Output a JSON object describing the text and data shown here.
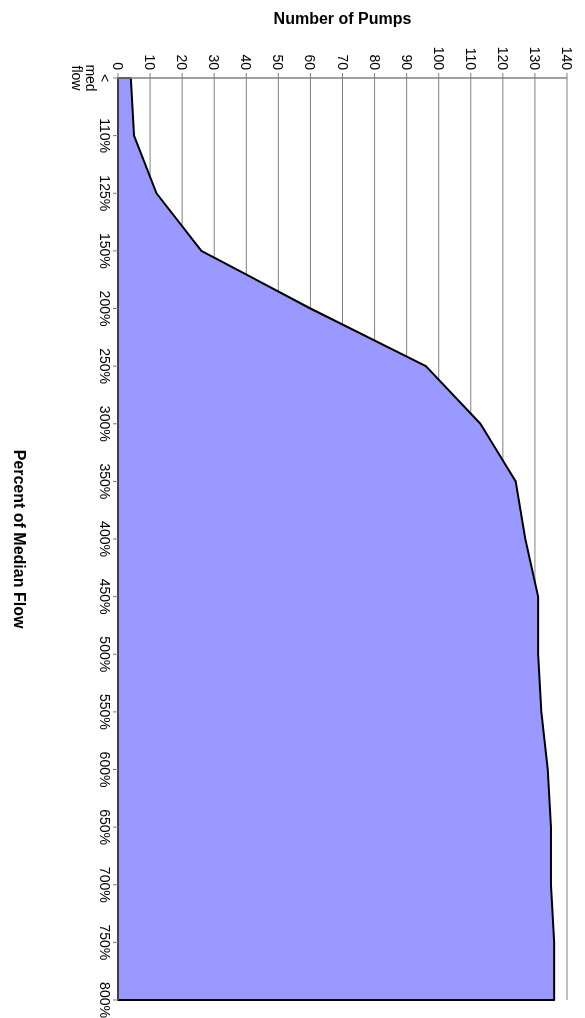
{
  "chart_data": {
    "type": "area",
    "orientation": "horizontal",
    "xlabel": "Number of Pumps",
    "ylabel": "Percent of Median Flow",
    "categories": [
      "< med flow",
      "110%",
      "125%",
      "150%",
      "200%",
      "250%",
      "300%",
      "350%",
      "400%",
      "450%",
      "500%",
      "550%",
      "600%",
      "650%",
      "700%",
      "750%",
      "800%"
    ],
    "series": [
      {
        "color": "#9999ff",
        "values": [
          4,
          5,
          12,
          26,
          60,
          96,
          113,
          124,
          127,
          131,
          131,
          132,
          134,
          135,
          135,
          136,
          136
        ]
      }
    ],
    "xlim": [
      0,
      140
    ],
    "xticks": [
      0,
      10,
      20,
      30,
      40,
      50,
      60,
      70,
      80,
      90,
      100,
      110,
      120,
      130,
      140
    ],
    "grid": "x"
  }
}
